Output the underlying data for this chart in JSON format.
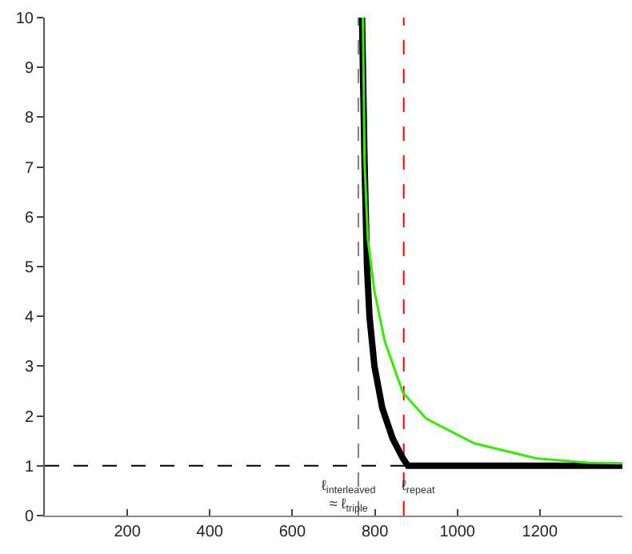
{
  "chart_data": {
    "type": "line",
    "xlim": [
      0,
      1400
    ],
    "ylim": [
      0,
      10
    ],
    "xticks": [
      200,
      400,
      600,
      800,
      1000,
      1200
    ],
    "yticks": [
      0,
      1,
      2,
      3,
      4,
      5,
      6,
      7,
      8,
      9,
      10
    ],
    "grid": false,
    "legend": false,
    "marker": "none",
    "line_style": "solid",
    "series": [
      {
        "color": "#000000",
        "x": [
          769,
          775,
          781,
          787,
          799,
          818,
          843,
          868,
          880,
          1400
        ],
        "values": [
          10,
          7.1,
          5.0,
          4.0,
          3.0,
          2.16,
          1.55,
          1.15,
          1.0,
          1.0
        ]
      },
      {
        "color": "#33ee00",
        "x": [
          771,
          775,
          783,
          799,
          824,
          868,
          924,
          1041,
          1191,
          1317,
          1400
        ],
        "values": [
          10,
          7.1,
          5.55,
          4.5,
          3.5,
          2.47,
          1.95,
          1.45,
          1.15,
          1.06,
          1.05
        ]
      }
    ],
    "ref_lines": [
      {
        "axis": "y",
        "value": 1,
        "color": "#000000",
        "line_style": "dashed"
      },
      {
        "axis": "x",
        "value": 760,
        "label": "ℓ$_{interleaved}$\n≈ ℓ$_{triple}$",
        "color": "#808080",
        "line_style": "dashed"
      },
      {
        "axis": "x",
        "value": 870,
        "label": "ℓ$_{repeat}$",
        "color": "#ff0000",
        "line_style": "dashed"
      }
    ]
  }
}
